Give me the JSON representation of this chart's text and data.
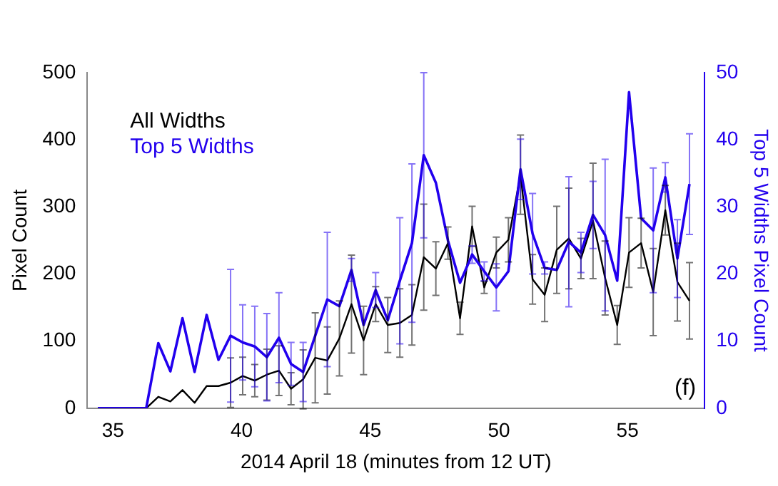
{
  "chart_data": {
    "type": "line",
    "xlabel": "2014 April 18 (minutes from 12 UT)",
    "ylabel": "Pixel Count",
    "y2label": "Top 5 Widths Pixel Count",
    "x": [
      34.41,
      34.88,
      35.35,
      35.82,
      36.29,
      36.76,
      37.23,
      37.7,
      38.17,
      38.64,
      39.1,
      39.57,
      40.04,
      40.51,
      40.98,
      41.45,
      41.92,
      42.39,
      42.86,
      43.33,
      43.8,
      44.27,
      44.74,
      45.21,
      45.68,
      46.15,
      46.62,
      47.08,
      47.55,
      48.02,
      48.49,
      48.96,
      49.43,
      49.9,
      50.37,
      50.84,
      51.31,
      51.78,
      52.25,
      52.72,
      53.19,
      53.66,
      54.13,
      54.6,
      55.06,
      55.53,
      56.0,
      56.47,
      56.94,
      57.41
    ],
    "xlim": [
      34,
      58
    ],
    "xticks": [
      35,
      40,
      45,
      50,
      55
    ],
    "ylim": [
      0,
      500
    ],
    "yticks": [
      0,
      100,
      200,
      300,
      400,
      500
    ],
    "y2lim": [
      0,
      50
    ],
    "y2ticks": [
      0,
      10,
      20,
      30,
      40,
      50
    ],
    "legend": "top left",
    "grid": false,
    "marker": "none",
    "annotations": [
      "(f)"
    ],
    "series": [
      {
        "name": "All Widths",
        "color": "#000000",
        "values": [
          0,
          0,
          0,
          0,
          0,
          17,
          10,
          27,
          8,
          33,
          33,
          38,
          48,
          41,
          50,
          56,
          29,
          43,
          75,
          71,
          104,
          155,
          101,
          155,
          124,
          127,
          139,
          225,
          208,
          246,
          134,
          271,
          180,
          232,
          251,
          348,
          192,
          169,
          236,
          253,
          223,
          279,
          194,
          124,
          232,
          246,
          173,
          295,
          188,
          160
        ],
        "errors": [
          null,
          null,
          null,
          null,
          null,
          null,
          null,
          null,
          null,
          null,
          null,
          37,
          28,
          24,
          38,
          37,
          24,
          44,
          67,
          50,
          56,
          73,
          51,
          26,
          41,
          51,
          45,
          79,
          40,
          24,
          24,
          30,
          9,
          23,
          33,
          59,
          37,
          40,
          65,
          75,
          30,
          86,
          55,
          29,
          52,
          37,
          65,
          37,
          58,
          57
        ]
      },
      {
        "name": "Top 5 Widths",
        "color": "#2200ee",
        "axis": "y2",
        "values": [
          0,
          0,
          0,
          0,
          0,
          9.7,
          5.5,
          13.4,
          5.4,
          13.9,
          7.2,
          10.8,
          9.8,
          9.2,
          7.6,
          10.5,
          6.6,
          5.4,
          10.8,
          16.2,
          15.2,
          20.6,
          12.4,
          17.6,
          13.1,
          19,
          24.6,
          37.7,
          33.6,
          25.0,
          18.7,
          22.9,
          20.4,
          18.0,
          20.4,
          35.6,
          26.0,
          20.9,
          20.6,
          24.8,
          23.2,
          28.8,
          25.8,
          19.0,
          47.1,
          28.3,
          26.5,
          34.4,
          22.3,
          33.4
        ],
        "errors": [
          null,
          null,
          null,
          null,
          null,
          null,
          null,
          null,
          null,
          null,
          null,
          9.9,
          5.6,
          6.0,
          6.5,
          6.7,
          3.2,
          4.4,
          null,
          10,
          null,
          1.7,
          null,
          2.6,
          null,
          9.4,
          11.8,
          12.3,
          null,
          null,
          null,
          1.3,
          1.4,
          3.5,
          null,
          4.5,
          6.0,
          0.9,
          null,
          9.7,
          3,
          5,
          11.3,
          null,
          null,
          null,
          9.3,
          2.2,
          5.8,
          7.5
        ]
      }
    ]
  }
}
